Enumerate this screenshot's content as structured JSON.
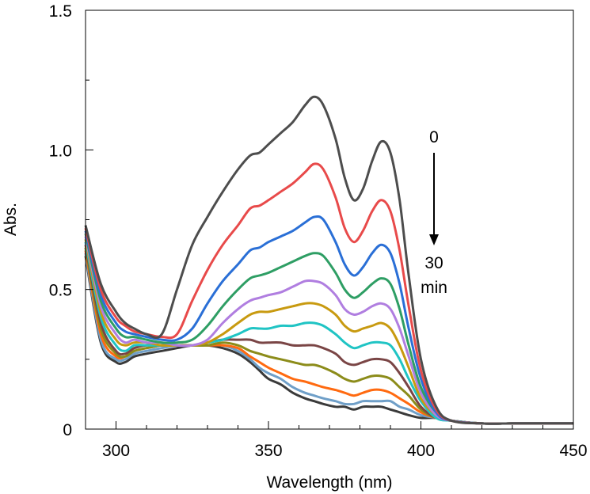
{
  "chart_data": {
    "type": "line",
    "xlabel": "Wavelength (nm)",
    "ylabel": "Abs.",
    "xlim": [
      290,
      450
    ],
    "ylim": [
      0,
      1.5
    ],
    "x_ticks": [
      300,
      350,
      400,
      450
    ],
    "x_tick_labels": [
      "300",
      "350",
      "400",
      "450"
    ],
    "y_ticks": [
      0,
      0.5,
      1.0,
      1.5
    ],
    "y_tick_labels": [
      "0",
      "0.5",
      "1.0",
      "1.5"
    ],
    "grid": false,
    "legend": "none",
    "annotation": {
      "start_label": "0",
      "end_label_line1": "30",
      "end_label_line2": "min"
    },
    "x": [
      290,
      295,
      300,
      303,
      306,
      310,
      315,
      320,
      325,
      330,
      335,
      340,
      344,
      347,
      350,
      354,
      358,
      362,
      365,
      368,
      372,
      375,
      378,
      381,
      384,
      387,
      390,
      393,
      396,
      400,
      405,
      410,
      420,
      430,
      440,
      450
    ],
    "series": [
      {
        "color": "#4d4d4d",
        "values": [
          0.73,
          0.52,
          0.42,
          0.38,
          0.36,
          0.34,
          0.34,
          0.5,
          0.66,
          0.76,
          0.85,
          0.93,
          0.98,
          0.99,
          1.02,
          1.06,
          1.1,
          1.16,
          1.19,
          1.16,
          1.04,
          0.9,
          0.82,
          0.86,
          0.96,
          1.03,
          0.99,
          0.82,
          0.55,
          0.25,
          0.08,
          0.03,
          0.02,
          0.02,
          0.02,
          0.02
        ]
      },
      {
        "color": "#e84a4a",
        "values": [
          0.72,
          0.5,
          0.4,
          0.37,
          0.35,
          0.34,
          0.33,
          0.34,
          0.46,
          0.57,
          0.66,
          0.73,
          0.79,
          0.8,
          0.82,
          0.85,
          0.88,
          0.92,
          0.95,
          0.93,
          0.83,
          0.72,
          0.67,
          0.71,
          0.78,
          0.82,
          0.78,
          0.64,
          0.44,
          0.21,
          0.07,
          0.03,
          0.02,
          0.02,
          0.02,
          0.02
        ]
      },
      {
        "color": "#2a6fd6",
        "values": [
          0.71,
          0.48,
          0.38,
          0.35,
          0.34,
          0.33,
          0.32,
          0.32,
          0.36,
          0.45,
          0.53,
          0.59,
          0.64,
          0.65,
          0.67,
          0.69,
          0.71,
          0.74,
          0.76,
          0.75,
          0.67,
          0.59,
          0.55,
          0.58,
          0.63,
          0.66,
          0.63,
          0.52,
          0.36,
          0.18,
          0.06,
          0.03,
          0.02,
          0.02,
          0.02,
          0.02
        ]
      },
      {
        "color": "#2e9e64",
        "values": [
          0.7,
          0.46,
          0.36,
          0.33,
          0.33,
          0.32,
          0.31,
          0.31,
          0.32,
          0.37,
          0.44,
          0.5,
          0.54,
          0.55,
          0.56,
          0.58,
          0.6,
          0.62,
          0.63,
          0.62,
          0.56,
          0.5,
          0.47,
          0.49,
          0.52,
          0.54,
          0.52,
          0.43,
          0.3,
          0.15,
          0.06,
          0.03,
          0.02,
          0.02,
          0.02,
          0.02
        ]
      },
      {
        "color": "#b07ee0",
        "values": [
          0.69,
          0.44,
          0.34,
          0.31,
          0.32,
          0.31,
          0.31,
          0.3,
          0.3,
          0.32,
          0.38,
          0.43,
          0.46,
          0.47,
          0.48,
          0.49,
          0.51,
          0.53,
          0.53,
          0.52,
          0.48,
          0.43,
          0.41,
          0.42,
          0.44,
          0.45,
          0.43,
          0.36,
          0.26,
          0.13,
          0.05,
          0.03,
          0.02,
          0.02,
          0.02,
          0.02
        ]
      },
      {
        "color": "#c89a10",
        "values": [
          0.68,
          0.42,
          0.32,
          0.3,
          0.31,
          0.31,
          0.3,
          0.3,
          0.3,
          0.31,
          0.34,
          0.38,
          0.41,
          0.42,
          0.42,
          0.43,
          0.44,
          0.45,
          0.45,
          0.44,
          0.41,
          0.37,
          0.35,
          0.36,
          0.37,
          0.38,
          0.36,
          0.3,
          0.22,
          0.11,
          0.05,
          0.03,
          0.02,
          0.02,
          0.02,
          0.02
        ]
      },
      {
        "color": "#20c4c4",
        "values": [
          0.67,
          0.4,
          0.3,
          0.28,
          0.3,
          0.3,
          0.3,
          0.3,
          0.3,
          0.31,
          0.32,
          0.34,
          0.36,
          0.36,
          0.36,
          0.37,
          0.37,
          0.38,
          0.38,
          0.37,
          0.34,
          0.31,
          0.29,
          0.3,
          0.31,
          0.31,
          0.3,
          0.25,
          0.18,
          0.1,
          0.04,
          0.03,
          0.02,
          0.02,
          0.02,
          0.02
        ]
      },
      {
        "color": "#7a4545",
        "values": [
          0.66,
          0.38,
          0.28,
          0.27,
          0.29,
          0.3,
          0.3,
          0.3,
          0.3,
          0.31,
          0.32,
          0.32,
          0.32,
          0.31,
          0.31,
          0.31,
          0.3,
          0.3,
          0.3,
          0.29,
          0.27,
          0.24,
          0.23,
          0.24,
          0.25,
          0.25,
          0.24,
          0.2,
          0.15,
          0.08,
          0.04,
          0.03,
          0.02,
          0.02,
          0.02,
          0.02
        ]
      },
      {
        "color": "#8c8c1a",
        "values": [
          0.65,
          0.36,
          0.27,
          0.26,
          0.28,
          0.29,
          0.3,
          0.3,
          0.3,
          0.3,
          0.31,
          0.3,
          0.28,
          0.27,
          0.26,
          0.25,
          0.24,
          0.23,
          0.23,
          0.22,
          0.2,
          0.18,
          0.17,
          0.18,
          0.19,
          0.19,
          0.18,
          0.15,
          0.12,
          0.07,
          0.04,
          0.03,
          0.02,
          0.02,
          0.02,
          0.02
        ]
      },
      {
        "color": "#ff6a10",
        "values": [
          0.64,
          0.34,
          0.26,
          0.26,
          0.28,
          0.29,
          0.3,
          0.3,
          0.3,
          0.3,
          0.3,
          0.29,
          0.26,
          0.24,
          0.22,
          0.2,
          0.18,
          0.17,
          0.16,
          0.15,
          0.14,
          0.13,
          0.12,
          0.13,
          0.14,
          0.14,
          0.13,
          0.11,
          0.09,
          0.06,
          0.04,
          0.03,
          0.02,
          0.02,
          0.02,
          0.02
        ]
      },
      {
        "color": "#6f9fc8",
        "values": [
          0.63,
          0.32,
          0.25,
          0.25,
          0.27,
          0.28,
          0.29,
          0.3,
          0.3,
          0.3,
          0.3,
          0.28,
          0.25,
          0.22,
          0.2,
          0.18,
          0.15,
          0.13,
          0.12,
          0.11,
          0.1,
          0.09,
          0.09,
          0.1,
          0.1,
          0.1,
          0.1,
          0.08,
          0.07,
          0.05,
          0.04,
          0.03,
          0.02,
          0.02,
          0.02,
          0.02
        ]
      },
      {
        "color": "#3a3a3a",
        "values": [
          0.62,
          0.31,
          0.24,
          0.24,
          0.26,
          0.27,
          0.28,
          0.29,
          0.3,
          0.3,
          0.29,
          0.27,
          0.24,
          0.21,
          0.18,
          0.16,
          0.13,
          0.11,
          0.1,
          0.09,
          0.08,
          0.08,
          0.07,
          0.08,
          0.08,
          0.08,
          0.07,
          0.06,
          0.05,
          0.04,
          0.04,
          0.03,
          0.02,
          0.02,
          0.02,
          0.02
        ]
      }
    ]
  }
}
